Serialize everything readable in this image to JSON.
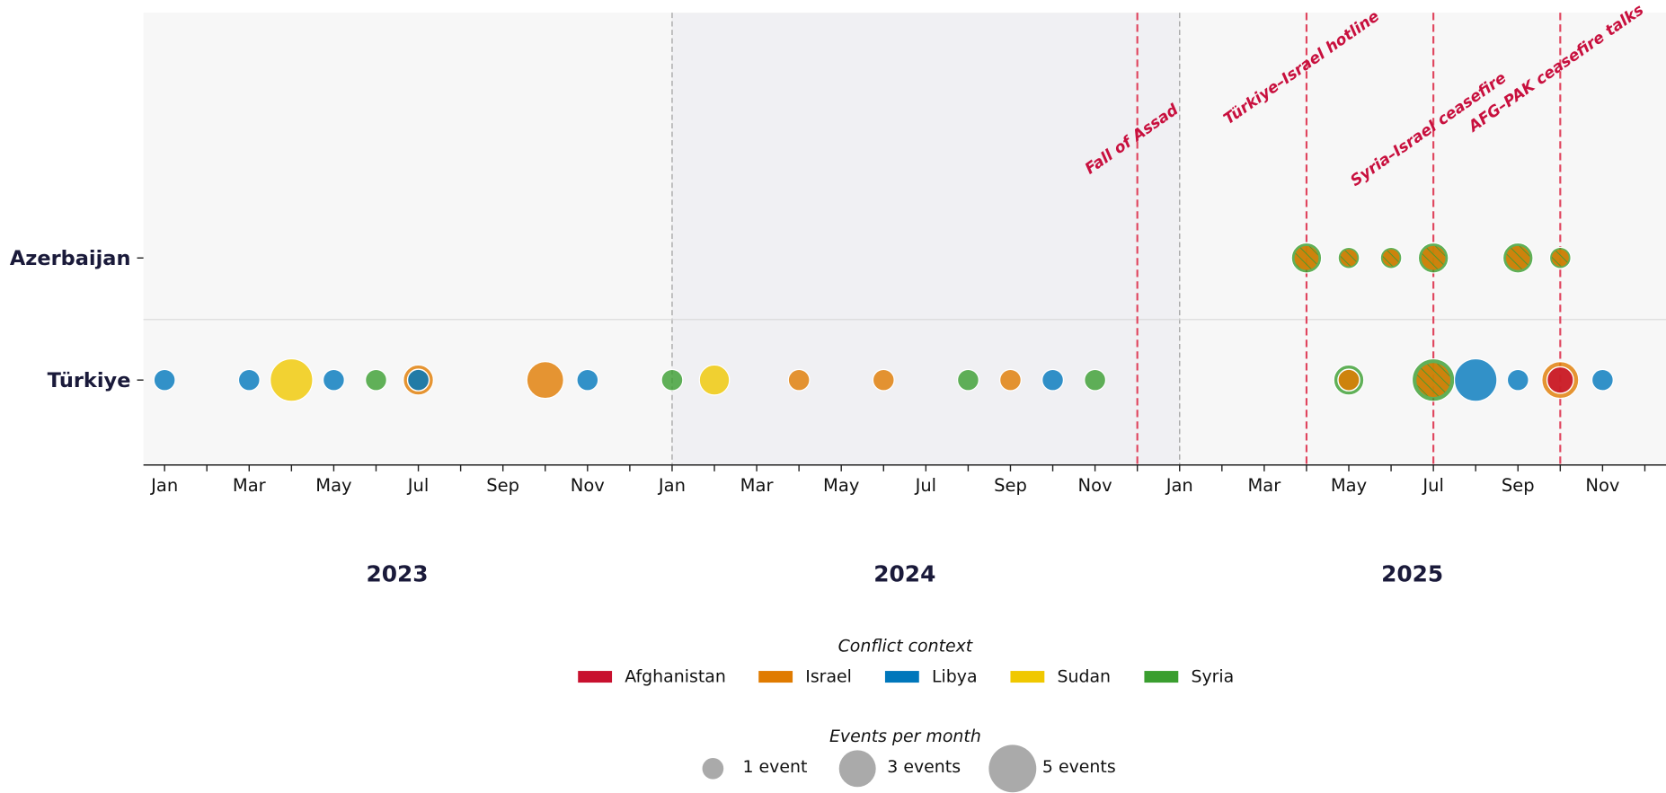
{
  "chart_data": {
    "type": "timeline-bubble",
    "rows": [
      "Azerbaijan",
      "Türkiye"
    ],
    "xlim": [
      "2022-12-16",
      "2025-12-16"
    ],
    "xticks": [
      {
        "value": "2023-01",
        "label": "Jan"
      },
      {
        "value": "2023-03",
        "label": "Mar"
      },
      {
        "value": "2023-05",
        "label": "May"
      },
      {
        "value": "2023-07",
        "label": "Jul"
      },
      {
        "value": "2023-09",
        "label": "Sep"
      },
      {
        "value": "2023-11",
        "label": "Nov"
      },
      {
        "value": "2024-01",
        "label": "Jan"
      },
      {
        "value": "2024-03",
        "label": "Mar"
      },
      {
        "value": "2024-05",
        "label": "May"
      },
      {
        "value": "2024-07",
        "label": "Jul"
      },
      {
        "value": "2024-09",
        "label": "Sep"
      },
      {
        "value": "2024-11",
        "label": "Nov"
      },
      {
        "value": "2025-01",
        "label": "Jan"
      },
      {
        "value": "2025-03",
        "label": "Mar"
      },
      {
        "value": "2025-05",
        "label": "May"
      },
      {
        "value": "2025-07",
        "label": "Jul"
      },
      {
        "value": "2025-09",
        "label": "Sep"
      },
      {
        "value": "2025-11",
        "label": "Nov"
      }
    ],
    "xminor_ticks": [
      "2023-02",
      "2023-04",
      "2023-06",
      "2023-08",
      "2023-10",
      "2023-12",
      "2024-02",
      "2024-04",
      "2024-06",
      "2024-08",
      "2024-10",
      "2024-12",
      "2025-02",
      "2025-04",
      "2025-06",
      "2025-08",
      "2025-10",
      "2025-12"
    ],
    "year_labels": [
      2023,
      2024,
      2025
    ],
    "shaded_span": [
      "2024-01",
      "2025-01"
    ],
    "contexts_title": "Conflict context",
    "contexts": [
      {
        "name": "Afghanistan",
        "color": "#c8102e"
      },
      {
        "name": "Israel",
        "color": "#e07b00"
      },
      {
        "name": "Libya",
        "color": "#0077bb"
      },
      {
        "name": "Sudan",
        "color": "#f0c800"
      },
      {
        "name": "Syria",
        "color": "#3a9e2f"
      }
    ],
    "size_title": "Events per month",
    "size_legend": [
      {
        "value": 1,
        "label": "1 event"
      },
      {
        "value": 3,
        "label": "3 events"
      },
      {
        "value": 5,
        "label": "5 events"
      }
    ],
    "annotations": [
      {
        "text": "Fall of Assad",
        "x": "2024-12"
      },
      {
        "text": "Türkiye–Israel hotline",
        "x": "2025-04"
      },
      {
        "text": "Syria–Israel ceasefire",
        "x": "2025-07"
      },
      {
        "text": "AFG–PAK ceasefire talks",
        "x": "2025-10"
      }
    ],
    "points": [
      {
        "row": "Türkiye",
        "x": "2023-01",
        "events": 1,
        "contexts": [
          "Libya"
        ]
      },
      {
        "row": "Türkiye",
        "x": "2023-03",
        "events": 1,
        "contexts": [
          "Libya"
        ]
      },
      {
        "row": "Türkiye",
        "x": "2023-04",
        "events": 4,
        "contexts": [
          "Sudan"
        ]
      },
      {
        "row": "Türkiye",
        "x": "2023-05",
        "events": 1,
        "contexts": [
          "Libya"
        ]
      },
      {
        "row": "Türkiye",
        "x": "2023-06",
        "events": 1,
        "contexts": [
          "Syria"
        ]
      },
      {
        "row": "Türkiye",
        "x": "2023-07",
        "events": 2,
        "contexts": [
          "Israel",
          "Libya"
        ]
      },
      {
        "row": "Türkiye",
        "x": "2023-10",
        "events": 3,
        "contexts": [
          "Israel"
        ]
      },
      {
        "row": "Türkiye",
        "x": "2023-11",
        "events": 1,
        "contexts": [
          "Libya"
        ]
      },
      {
        "row": "Türkiye",
        "x": "2024-01",
        "events": 1,
        "contexts": [
          "Syria"
        ]
      },
      {
        "row": "Türkiye",
        "x": "2024-02",
        "events": 2,
        "contexts": [
          "Sudan"
        ]
      },
      {
        "row": "Türkiye",
        "x": "2024-04",
        "events": 1,
        "contexts": [
          "Israel"
        ]
      },
      {
        "row": "Türkiye",
        "x": "2024-06",
        "events": 1,
        "contexts": [
          "Israel"
        ]
      },
      {
        "row": "Türkiye",
        "x": "2024-08",
        "events": 1,
        "contexts": [
          "Syria"
        ]
      },
      {
        "row": "Türkiye",
        "x": "2024-09",
        "events": 1,
        "contexts": [
          "Israel"
        ]
      },
      {
        "row": "Türkiye",
        "x": "2024-10",
        "events": 1,
        "contexts": [
          "Libya"
        ]
      },
      {
        "row": "Türkiye",
        "x": "2024-11",
        "events": 1,
        "contexts": [
          "Syria"
        ]
      },
      {
        "row": "Türkiye",
        "x": "2025-05",
        "events": 2,
        "contexts": [
          "Syria",
          "Israel"
        ]
      },
      {
        "row": "Türkiye",
        "x": "2025-07",
        "events": 4,
        "contexts": [
          "Syria",
          "Israel"
        ],
        "hatched": true
      },
      {
        "row": "Türkiye",
        "x": "2025-08",
        "events": 4,
        "contexts": [
          "Libya"
        ]
      },
      {
        "row": "Türkiye",
        "x": "2025-09",
        "events": 1,
        "contexts": [
          "Libya"
        ]
      },
      {
        "row": "Türkiye",
        "x": "2025-10",
        "events": 3,
        "contexts": [
          "Israel",
          "Afghanistan"
        ]
      },
      {
        "row": "Türkiye",
        "x": "2025-11",
        "events": 1,
        "contexts": [
          "Libya"
        ]
      },
      {
        "row": "Azerbaijan",
        "x": "2025-04",
        "events": 2,
        "contexts": [
          "Syria",
          "Israel"
        ],
        "hatched": true
      },
      {
        "row": "Azerbaijan",
        "x": "2025-05",
        "events": 1,
        "contexts": [
          "Syria",
          "Israel"
        ],
        "hatched": true
      },
      {
        "row": "Azerbaijan",
        "x": "2025-06",
        "events": 1,
        "contexts": [
          "Syria",
          "Israel"
        ],
        "hatched": true
      },
      {
        "row": "Azerbaijan",
        "x": "2025-07",
        "events": 2,
        "contexts": [
          "Syria",
          "Israel"
        ],
        "hatched": true
      },
      {
        "row": "Azerbaijan",
        "x": "2025-09",
        "events": 2,
        "contexts": [
          "Syria",
          "Israel"
        ],
        "hatched": true
      },
      {
        "row": "Azerbaijan",
        "x": "2025-10",
        "events": 1,
        "contexts": [
          "Syria",
          "Israel"
        ],
        "hatched": true
      }
    ]
  }
}
